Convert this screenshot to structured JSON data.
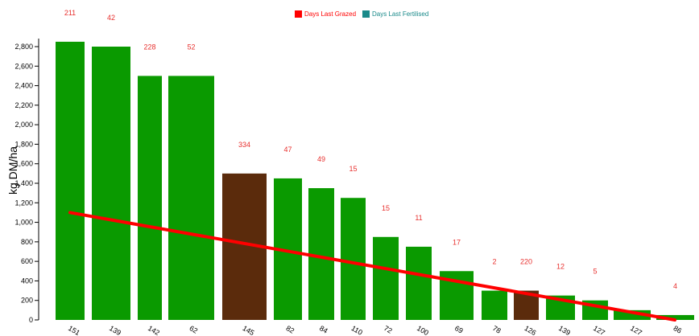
{
  "chart_data": {
    "type": "bar",
    "ylabel": "kg DM/ha",
    "ylim": [
      0,
      2950
    ],
    "yticks": [
      0,
      200,
      400,
      600,
      800,
      1000,
      1200,
      1400,
      1600,
      1800,
      2000,
      2200,
      2400,
      2600,
      2800
    ],
    "ytick_labels": [
      "0",
      "200",
      "400",
      "600",
      "800",
      "1,000",
      "1,200",
      "1,400",
      "1,600",
      "1,800",
      "2,000",
      "2,200",
      "2,400",
      "2,600",
      "2,800"
    ],
    "categories": [
      "151",
      "139",
      "142",
      "62",
      "145",
      "82",
      "84",
      "110",
      "72",
      "100",
      "69",
      "78",
      "126",
      "139",
      "127",
      "127",
      "86"
    ],
    "values": [
      2850,
      2800,
      2500,
      2500,
      1500,
      1450,
      1350,
      1250,
      850,
      750,
      500,
      300,
      300,
      250,
      200,
      100,
      50
    ],
    "bar_labels": [
      "211",
      "42",
      "228",
      "52",
      "334",
      "47",
      "49",
      "15",
      "15",
      "11",
      "17",
      "2",
      "220",
      "12",
      "5",
      "",
      "4"
    ],
    "bar_colors": [
      "#0a9a00",
      "#0a9a00",
      "#0a9a00",
      "#0a9a00",
      "#5b2b0c",
      "#0a9a00",
      "#0a9a00",
      "#0a9a00",
      "#0a9a00",
      "#0a9a00",
      "#0a9a00",
      "#0a9a00",
      "#5b2b0c",
      "#0a9a00",
      "#0a9a00",
      "#0a9a00",
      "#0a9a00"
    ],
    "trend_line": {
      "start_value": 1100,
      "end_value": 0,
      "color": "#ff0000"
    },
    "legend": {
      "placement": "top-center",
      "items": [
        {
          "label": "Days Last Grazed",
          "color": "#ff0000"
        },
        {
          "label": "Days Last Fertilised",
          "color": "#1a8a8a"
        }
      ]
    },
    "label_color": "#e8312f",
    "grid": false
  }
}
